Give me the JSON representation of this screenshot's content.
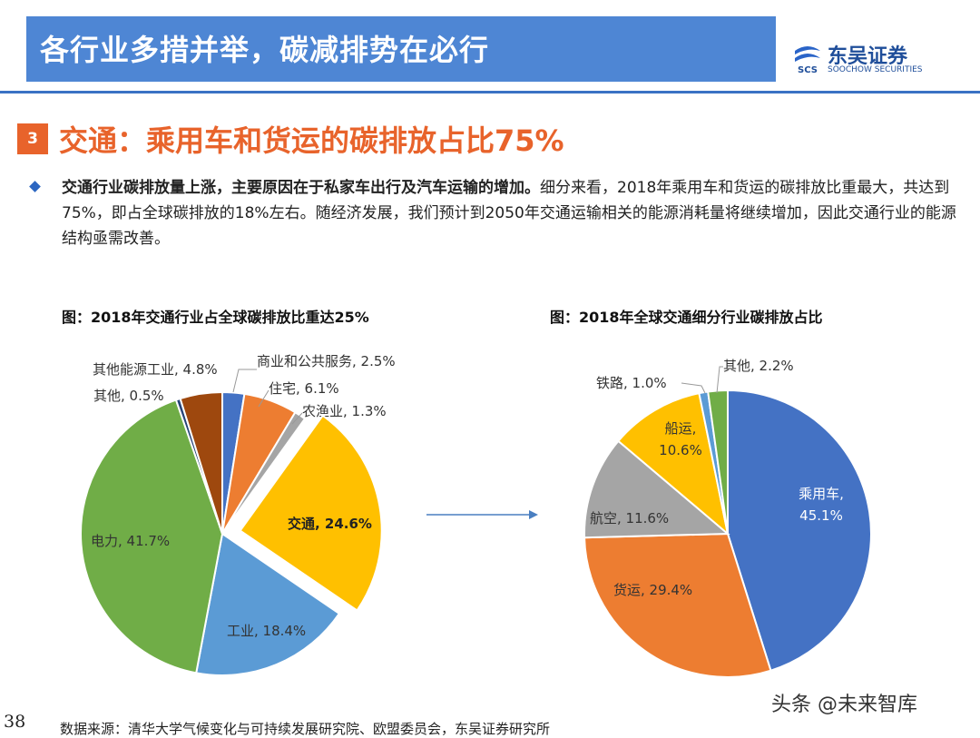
{
  "header": {
    "title": "各行业多措并举，碳减排势在必行"
  },
  "logo": {
    "name": "东吴证券",
    "english": "SOOCHOW SECURITIES",
    "mark_text": "SCS"
  },
  "section": {
    "number": "3",
    "title": "交通：乘用车和货运的碳排放占比75%"
  },
  "paragraph": {
    "bold": "交通行业碳排放量上涨，主要原因在于私家车出行及汽车运输的增加。",
    "rest": "细分来看，2018年乘用车和货运的碳排放比重最大，共达到75%，即占全球碳排放的18%左右。随经济发展，我们预计到2050年交通运输相关的能源消耗量将继续增加，因此交通行业的能源结构亟需改善。"
  },
  "chart_data": [
    {
      "type": "pie",
      "title": "图：2018年交通行业占全球碳排放比重达25%",
      "exploded": "交通",
      "slices": [
        {
          "label": "商业和公共服务",
          "value": 2.5,
          "text": "2.5%",
          "color": "#4472c4"
        },
        {
          "label": "住宅",
          "value": 6.1,
          "text": "6.1%",
          "color": "#ed7d31"
        },
        {
          "label": "农渔业",
          "value": 1.3,
          "text": "1.3%",
          "color": "#a5a5a5"
        },
        {
          "label": "交通",
          "value": 24.6,
          "text": "24.6%",
          "color": "#ffc000"
        },
        {
          "label": "工业",
          "value": 18.4,
          "text": "18.4%",
          "color": "#5b9bd5"
        },
        {
          "label": "电力",
          "value": 41.7,
          "text": "41.7%",
          "color": "#70ad47"
        },
        {
          "label": "其他",
          "value": 0.5,
          "text": "0.5%",
          "color": "#264478"
        },
        {
          "label": "其他能源工业",
          "value": 4.8,
          "text": "4.8%",
          "color": "#9e480e"
        }
      ]
    },
    {
      "type": "pie",
      "title": "图：2018年全球交通细分行业碳排放占比",
      "slices": [
        {
          "label": "乘用车",
          "value": 45.1,
          "text": "45.1%",
          "color": "#4472c4"
        },
        {
          "label": "货运",
          "value": 29.4,
          "text": "29.4%",
          "color": "#ed7d31"
        },
        {
          "label": "航空",
          "value": 11.6,
          "text": "11.6%",
          "color": "#a5a5a5"
        },
        {
          "label": "船运",
          "value": 10.6,
          "text": "10.6%",
          "color": "#ffc000"
        },
        {
          "label": "铁路",
          "value": 1.0,
          "text": "1.0%",
          "color": "#5b9bd5"
        },
        {
          "label": "其他",
          "value": 2.2,
          "text": "2.2%",
          "color": "#70ad47"
        }
      ]
    }
  ],
  "footer": {
    "page_number": "38",
    "source": "数据来源：清华大学气候变化与可持续发展研究院、欧盟委员会，东吴证券研究所",
    "watermark": "头条 @未来智库"
  }
}
